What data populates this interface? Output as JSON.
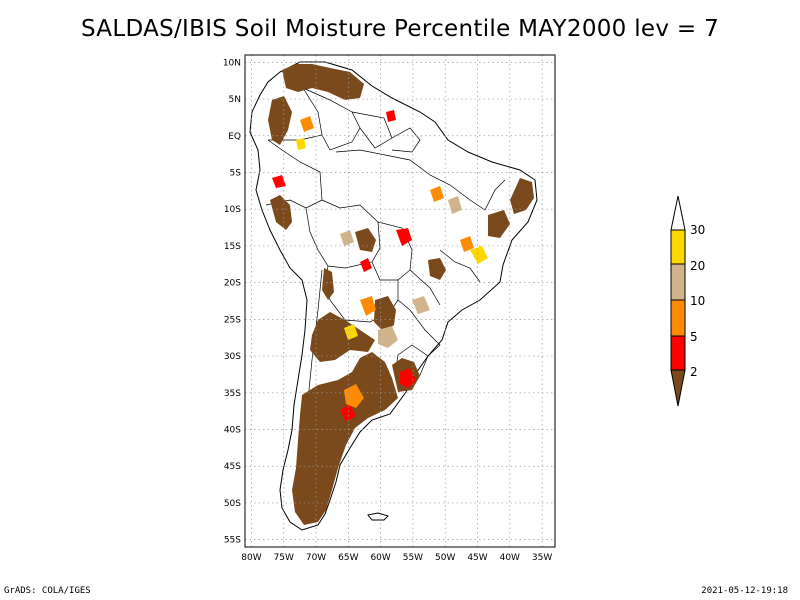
{
  "title": "SALDAS/IBIS Soil Moisture Percentile MAY2000 lev = 7",
  "map": {
    "lat_labels": [
      "10N",
      "5N",
      "EQ",
      "5S",
      "10S",
      "15S",
      "20S",
      "25S",
      "30S",
      "35S",
      "40S",
      "45S",
      "50S",
      "55S"
    ],
    "lon_labels": [
      "80W",
      "75W",
      "70W",
      "65W",
      "60W",
      "55W",
      "50W",
      "45W",
      "40W",
      "35W"
    ],
    "lat_range": [
      -56,
      11
    ],
    "lon_range": [
      -81,
      -33
    ]
  },
  "colorbar": {
    "labels": [
      "2",
      "5",
      "10",
      "20",
      "30"
    ],
    "colors": {
      "below_2": "#7a4a1c",
      "2_5": "#ff0000",
      "5_10": "#ff8c00",
      "10_20": "#d2b48c",
      "20_30": "#ffd700",
      "above_30": "#ffffff"
    }
  },
  "footer": {
    "left": "GrADS: COLA/IGES",
    "right": "2021-05-12-19:18"
  }
}
